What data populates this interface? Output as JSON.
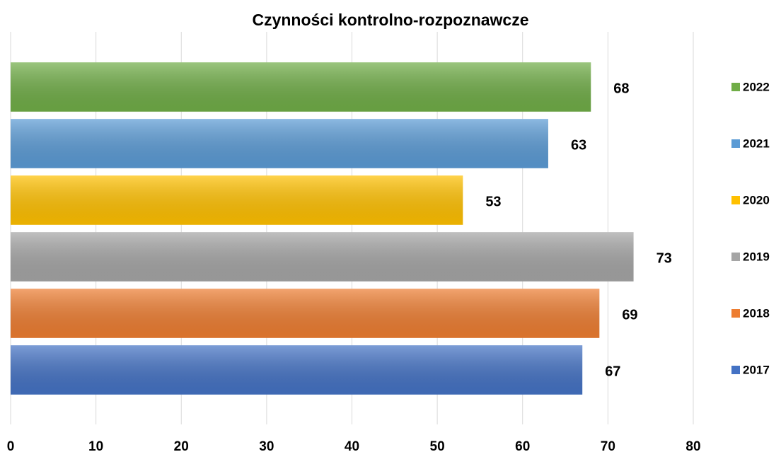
{
  "chart_data": {
    "type": "barh",
    "title": "Czynności kontrolno-rozpoznawcze",
    "series": [
      {
        "name": "2017",
        "color": "#4472c4",
        "values": [
          67
        ]
      },
      {
        "name": "2018",
        "color": "#ed7d31",
        "values": [
          69
        ]
      },
      {
        "name": "2019",
        "color": "#a5a5a5",
        "values": [
          73
        ]
      },
      {
        "name": "2020",
        "color": "#ffc000",
        "values": [
          53
        ]
      },
      {
        "name": "2021",
        "color": "#5b9bd5",
        "values": [
          63
        ]
      },
      {
        "name": "2022",
        "color": "#70ad47",
        "values": [
          68
        ]
      }
    ],
    "xlim": [
      0,
      80
    ],
    "xticks": [
      0,
      10,
      20,
      30,
      40,
      50,
      60,
      70,
      80
    ],
    "grid": true,
    "legend": "right"
  }
}
